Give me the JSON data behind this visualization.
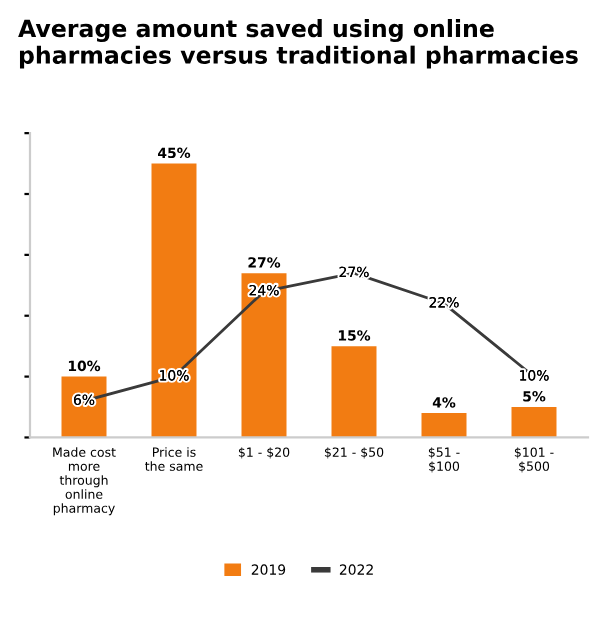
{
  "chart_data": {
    "type": "bar",
    "title": "Average amount saved using online pharmacies versus traditional pharmacies",
    "categories": [
      "Made cost\nmore\nthrough\nonline\npharmacy",
      "Price is\nthe same",
      "$1 - $20",
      "$21 - $50",
      "$51 -\n$100",
      "$101 -\n$500"
    ],
    "series": [
      {
        "name": "2019",
        "color": "#f27c12",
        "values": [
          10,
          45,
          27,
          15,
          4,
          5
        ],
        "value_labels": [
          "10%",
          "45%",
          "27%",
          "15%",
          "4%",
          "5%"
        ]
      },
      {
        "name": "2022",
        "type": "line",
        "color": "#3a3a3a",
        "marker": "none",
        "values": [
          6,
          10,
          24,
          27,
          22,
          10
        ],
        "value_labels": [
          "6%",
          "10%",
          "24%",
          "27%",
          "22%",
          "10%"
        ]
      }
    ],
    "ylim": [
      0,
      50
    ],
    "tick_labels": "x",
    "legend": "bottom",
    "grid": false
  }
}
